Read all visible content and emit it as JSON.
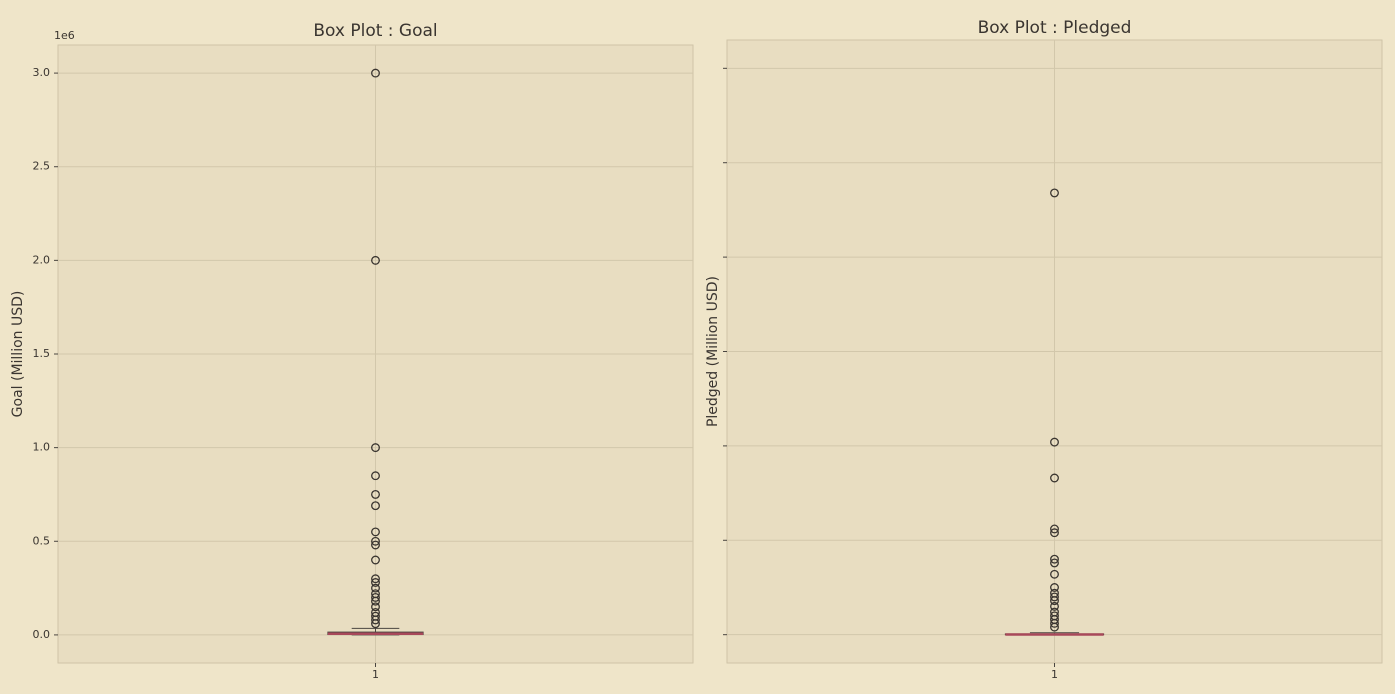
{
  "chart_data": [
    {
      "type": "box",
      "title": "Box Plot : Goal",
      "ylabel": "Goal (Million USD)",
      "offset_label": "1e6",
      "categories": [
        "1"
      ],
      "box": {
        "whislo": 0,
        "q1": 0.002,
        "med": 0.006,
        "q3": 0.015,
        "whishi": 0.035
      },
      "outliers": [
        3.0,
        2.0,
        1.0,
        0.85,
        0.75,
        0.69,
        0.55,
        0.5,
        0.48,
        0.4,
        0.3,
        0.28,
        0.25,
        0.22,
        0.2,
        0.18,
        0.15,
        0.12,
        0.1,
        0.08,
        0.06
      ],
      "ylim": [
        -0.15,
        3.15
      ],
      "yticks": [
        {
          "value": 0,
          "label": "0.0"
        },
        0.5,
        {
          "value": 1,
          "label": "1.0"
        },
        1.5,
        {
          "value": 2,
          "label": "2.0"
        },
        2.5,
        {
          "value": 3,
          "label": "3.0"
        }
      ],
      "tick_labels": true,
      "grid": true,
      "box_color": "#4a4540",
      "median_color": "#a8485a",
      "outlier_color": "#3a3530"
    },
    {
      "type": "box",
      "title": "Box Plot : Pledged",
      "ylabel": "Pledged (Million USD)",
      "categories": [
        "1"
      ],
      "box": {
        "whislo": 0,
        "q1": 0,
        "med": 0.001,
        "q3": 0.004,
        "whishi": 0.01
      },
      "outliers": [
        2.34,
        1.02,
        0.83,
        0.56,
        0.54,
        0.4,
        0.38,
        0.32,
        0.25,
        0.22,
        0.2,
        0.18,
        0.15,
        0.12,
        0.1,
        0.08,
        0.06,
        0.04
      ],
      "ylim": [
        -0.15,
        3.15
      ],
      "yticks": [
        0,
        0.5,
        1,
        1.5,
        2,
        2.5,
        3
      ],
      "tick_labels": false,
      "grid": true,
      "box_color": "#4a4540",
      "median_color": "#a8485a",
      "outlier_color": "#3a3530"
    }
  ]
}
